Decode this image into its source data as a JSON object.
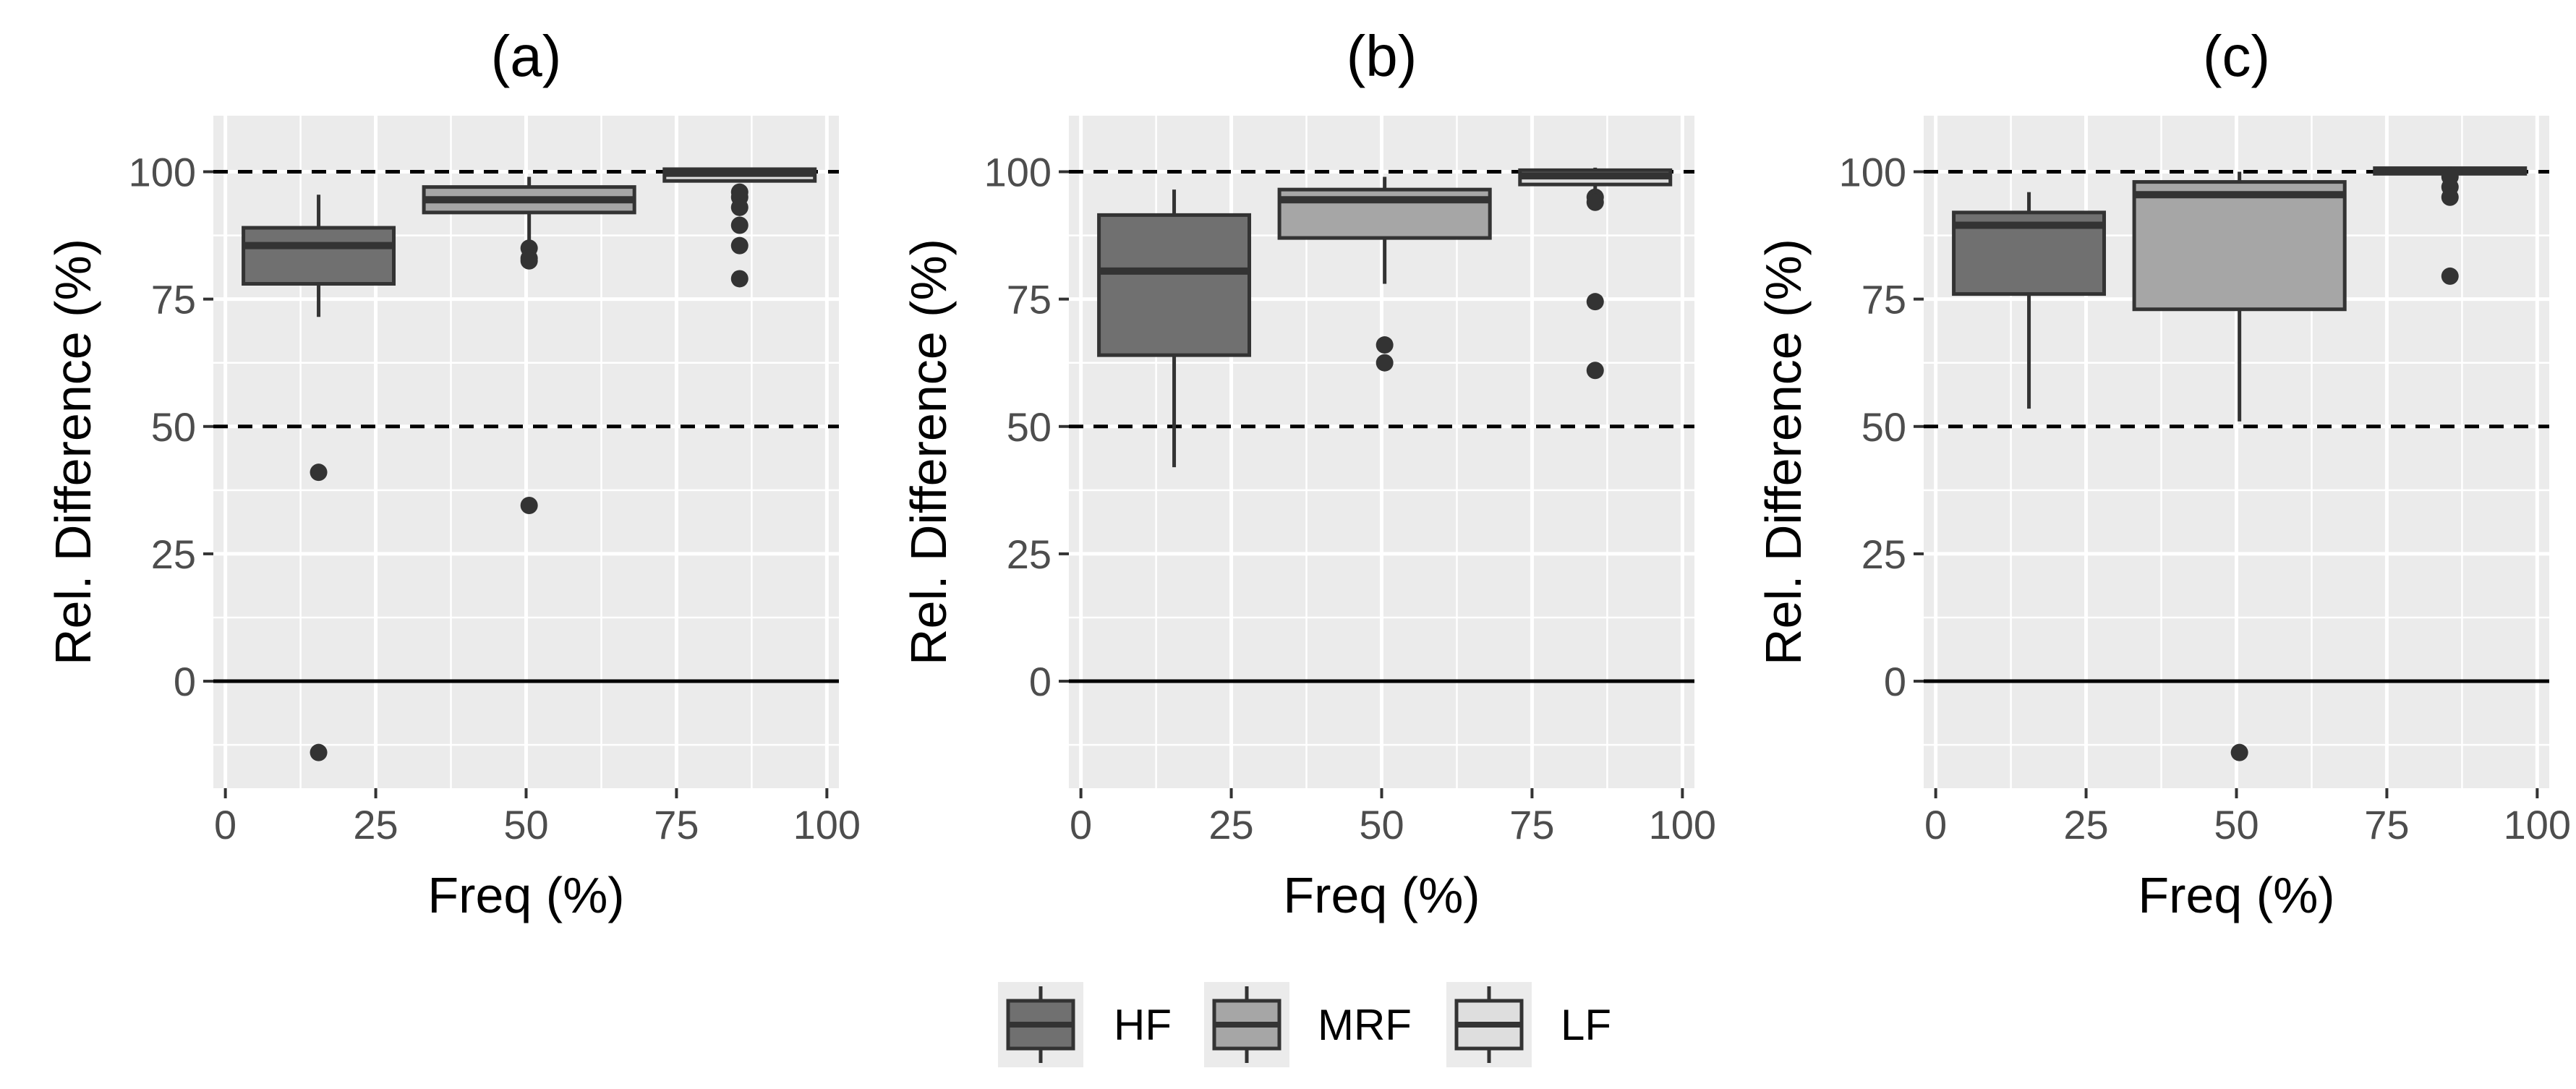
{
  "chart_data": [
    {
      "type": "boxplot",
      "title": "(a)",
      "xlabel": "Freq (%)",
      "ylabel": "Rel. Difference (%)",
      "xlim": [
        -2,
        102
      ],
      "ylim": [
        -21,
        111
      ],
      "xticks": [
        "0",
        "25",
        "50",
        "75",
        "100"
      ],
      "yticks": [
        "0",
        "25",
        "50",
        "75",
        "100"
      ],
      "hlines": [
        {
          "y": 100,
          "style": "dashed"
        },
        {
          "y": 50,
          "style": "dashed"
        },
        {
          "y": 0,
          "style": "solid"
        }
      ],
      "boxes": [
        {
          "group": "HF",
          "x_range": [
            3,
            28
          ],
          "whisker_low": 71.5,
          "q1": 78,
          "median": 85.5,
          "q3": 89,
          "whisker_high": 95.5,
          "outliers": [
            41,
            -14
          ]
        },
        {
          "group": "MRF",
          "x_range": [
            33,
            68
          ],
          "whisker_low": 86.5,
          "q1": 92,
          "median": 94.5,
          "q3": 97,
          "whisker_high": 99,
          "outliers": [
            85,
            83,
            82.5,
            34.5
          ]
        },
        {
          "group": "LF",
          "x_range": [
            73,
            98
          ],
          "whisker_low": 98,
          "q1": 98.2,
          "median": 99.7,
          "q3": 100.5,
          "whisker_high": 100.8,
          "outliers": [
            96,
            95,
            93,
            89.5,
            85.5,
            79
          ]
        }
      ]
    },
    {
      "type": "boxplot",
      "title": "(b)",
      "xlabel": "Freq (%)",
      "ylabel": "Rel. Difference (%)",
      "xlim": [
        -2,
        102
      ],
      "ylim": [
        -21,
        111
      ],
      "xticks": [
        "0",
        "25",
        "50",
        "75",
        "100"
      ],
      "yticks": [
        "0",
        "25",
        "50",
        "75",
        "100"
      ],
      "hlines": [
        {
          "y": 100,
          "style": "dashed"
        },
        {
          "y": 50,
          "style": "dashed"
        },
        {
          "y": 0,
          "style": "solid"
        }
      ],
      "boxes": [
        {
          "group": "HF",
          "x_range": [
            3,
            28
          ],
          "whisker_low": 42,
          "q1": 64,
          "median": 80.5,
          "q3": 91.5,
          "whisker_high": 96.5,
          "outliers": []
        },
        {
          "group": "MRF",
          "x_range": [
            33,
            68
          ],
          "whisker_low": 78,
          "q1": 87,
          "median": 94.5,
          "q3": 96.5,
          "whisker_high": 99,
          "outliers": [
            66,
            62.5
          ]
        },
        {
          "group": "LF",
          "x_range": [
            73,
            98
          ],
          "whisker_low": 96.5,
          "q1": 97.5,
          "median": 99.2,
          "q3": 100.3,
          "whisker_high": 100.8,
          "outliers": [
            95,
            94,
            74.5,
            61
          ]
        }
      ]
    },
    {
      "type": "boxplot",
      "title": "(c)",
      "xlabel": "Freq (%)",
      "ylabel": "Rel. Difference (%)",
      "xlim": [
        -2,
        102
      ],
      "ylim": [
        -21,
        111
      ],
      "xticks": [
        "0",
        "25",
        "50",
        "75",
        "100"
      ],
      "yticks": [
        "0",
        "25",
        "50",
        "75",
        "100"
      ],
      "hlines": [
        {
          "y": 100,
          "style": "dashed"
        },
        {
          "y": 50,
          "style": "dashed"
        },
        {
          "y": 0,
          "style": "solid"
        }
      ],
      "boxes": [
        {
          "group": "HF",
          "x_range": [
            3,
            28
          ],
          "whisker_low": 53.5,
          "q1": 76,
          "median": 89.5,
          "q3": 92,
          "whisker_high": 96,
          "outliers": []
        },
        {
          "group": "MRF",
          "x_range": [
            33,
            68
          ],
          "whisker_low": 51,
          "q1": 73,
          "median": 95.5,
          "q3": 98,
          "whisker_high": 100,
          "outliers": [
            -14
          ]
        },
        {
          "group": "LF",
          "x_range": [
            73,
            98
          ],
          "whisker_low": 99.2,
          "q1": 99.6,
          "median": 100,
          "q3": 100.7,
          "whisker_high": 101,
          "outliers": [
            99,
            97,
            95,
            79.5
          ]
        }
      ]
    }
  ],
  "legend": {
    "position": "bottom",
    "items": [
      {
        "label": "HF",
        "fill": "#707070"
      },
      {
        "label": "MRF",
        "fill": "#a6a6a6"
      },
      {
        "label": "LF",
        "fill": "#dedede"
      }
    ]
  },
  "colors": {
    "panel_background": "#ebebeb",
    "grid": "#ffffff",
    "box_outline": "#333333",
    "outlier": "#333333",
    "reference_line": "#000000"
  }
}
